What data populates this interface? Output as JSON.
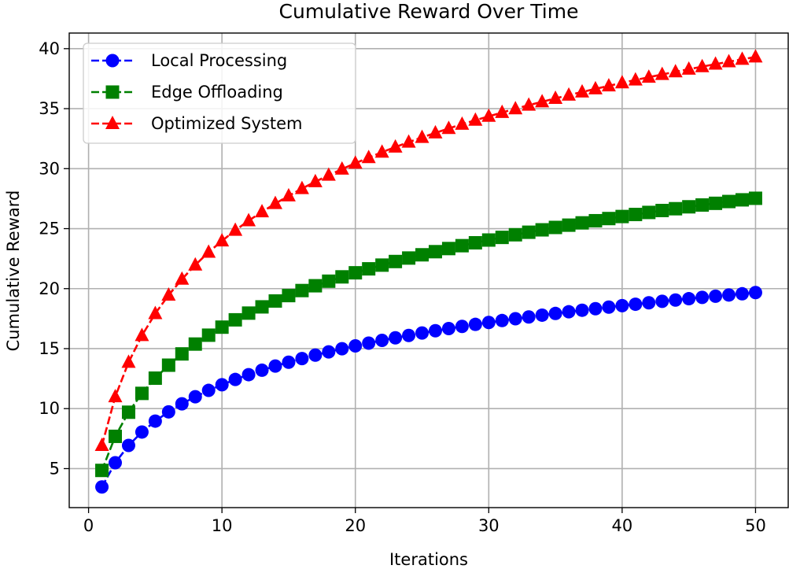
{
  "chart_data": {
    "type": "line",
    "title": "Cumulative Reward Over Time",
    "xlabel": "Iterations",
    "ylabel": "Cumulative Reward",
    "xlim": [
      -1.45,
      52.45
    ],
    "ylim": [
      1.75,
      41.3
    ],
    "xticks": [
      0,
      10,
      20,
      30,
      40,
      50
    ],
    "yticks": [
      5,
      10,
      15,
      20,
      25,
      30,
      35,
      40
    ],
    "grid": true,
    "legend_position": "upper-left",
    "x": [
      1,
      2,
      3,
      4,
      5,
      6,
      7,
      8,
      9,
      10,
      11,
      12,
      13,
      14,
      15,
      16,
      17,
      18,
      19,
      20,
      21,
      22,
      23,
      24,
      25,
      26,
      27,
      28,
      29,
      30,
      31,
      32,
      33,
      34,
      35,
      36,
      37,
      38,
      39,
      40,
      41,
      42,
      43,
      44,
      45,
      46,
      47,
      48,
      49,
      50
    ],
    "series": [
      {
        "name": "Local Processing",
        "color": "#0000ff",
        "marker": "circle",
        "values": [
          3.47,
          5.49,
          6.93,
          8.05,
          8.96,
          9.73,
          10.4,
          10.99,
          11.52,
          11.99,
          12.43,
          12.83,
          13.2,
          13.55,
          13.87,
          14.17,
          14.46,
          14.73,
          14.99,
          15.23,
          15.46,
          15.69,
          15.9,
          16.1,
          16.3,
          16.49,
          16.67,
          16.85,
          17.02,
          17.18,
          17.34,
          17.49,
          17.64,
          17.79,
          17.93,
          18.07,
          18.2,
          18.33,
          18.46,
          18.58,
          18.7,
          18.82,
          18.94,
          19.05,
          19.16,
          19.27,
          19.37,
          19.47,
          19.57,
          19.67
        ]
      },
      {
        "name": "Edge Offloading",
        "color": "#008000",
        "marker": "square",
        "values": [
          4.85,
          7.69,
          9.7,
          11.27,
          12.54,
          13.62,
          14.56,
          15.38,
          16.12,
          16.79,
          17.4,
          17.96,
          18.48,
          18.97,
          19.42,
          19.84,
          20.24,
          20.62,
          20.98,
          21.32,
          21.65,
          21.96,
          22.26,
          22.55,
          22.82,
          23.08,
          23.34,
          23.58,
          23.82,
          24.05,
          24.27,
          24.49,
          24.7,
          24.9,
          25.1,
          25.29,
          25.48,
          25.66,
          25.84,
          26.01,
          26.18,
          26.35,
          26.51,
          26.66,
          26.82,
          26.97,
          27.11,
          27.26,
          27.4,
          27.53
        ]
      },
      {
        "name": "Optimized System",
        "color": "#ff0000",
        "marker": "triangle",
        "values": [
          6.93,
          10.99,
          13.86,
          16.09,
          17.92,
          19.46,
          20.79,
          21.97,
          23.03,
          23.98,
          24.86,
          25.66,
          26.4,
          27.09,
          27.73,
          28.34,
          28.91,
          29.45,
          29.96,
          30.45,
          30.92,
          31.37,
          31.8,
          32.21,
          32.6,
          32.98,
          33.35,
          33.7,
          34.04,
          34.36,
          34.68,
          34.99,
          35.29,
          35.57,
          35.86,
          36.13,
          36.39,
          36.65,
          36.9,
          37.15,
          37.39,
          37.62,
          37.85,
          38.07,
          38.29,
          38.5,
          38.71,
          38.91,
          39.11,
          39.31
        ]
      }
    ]
  }
}
